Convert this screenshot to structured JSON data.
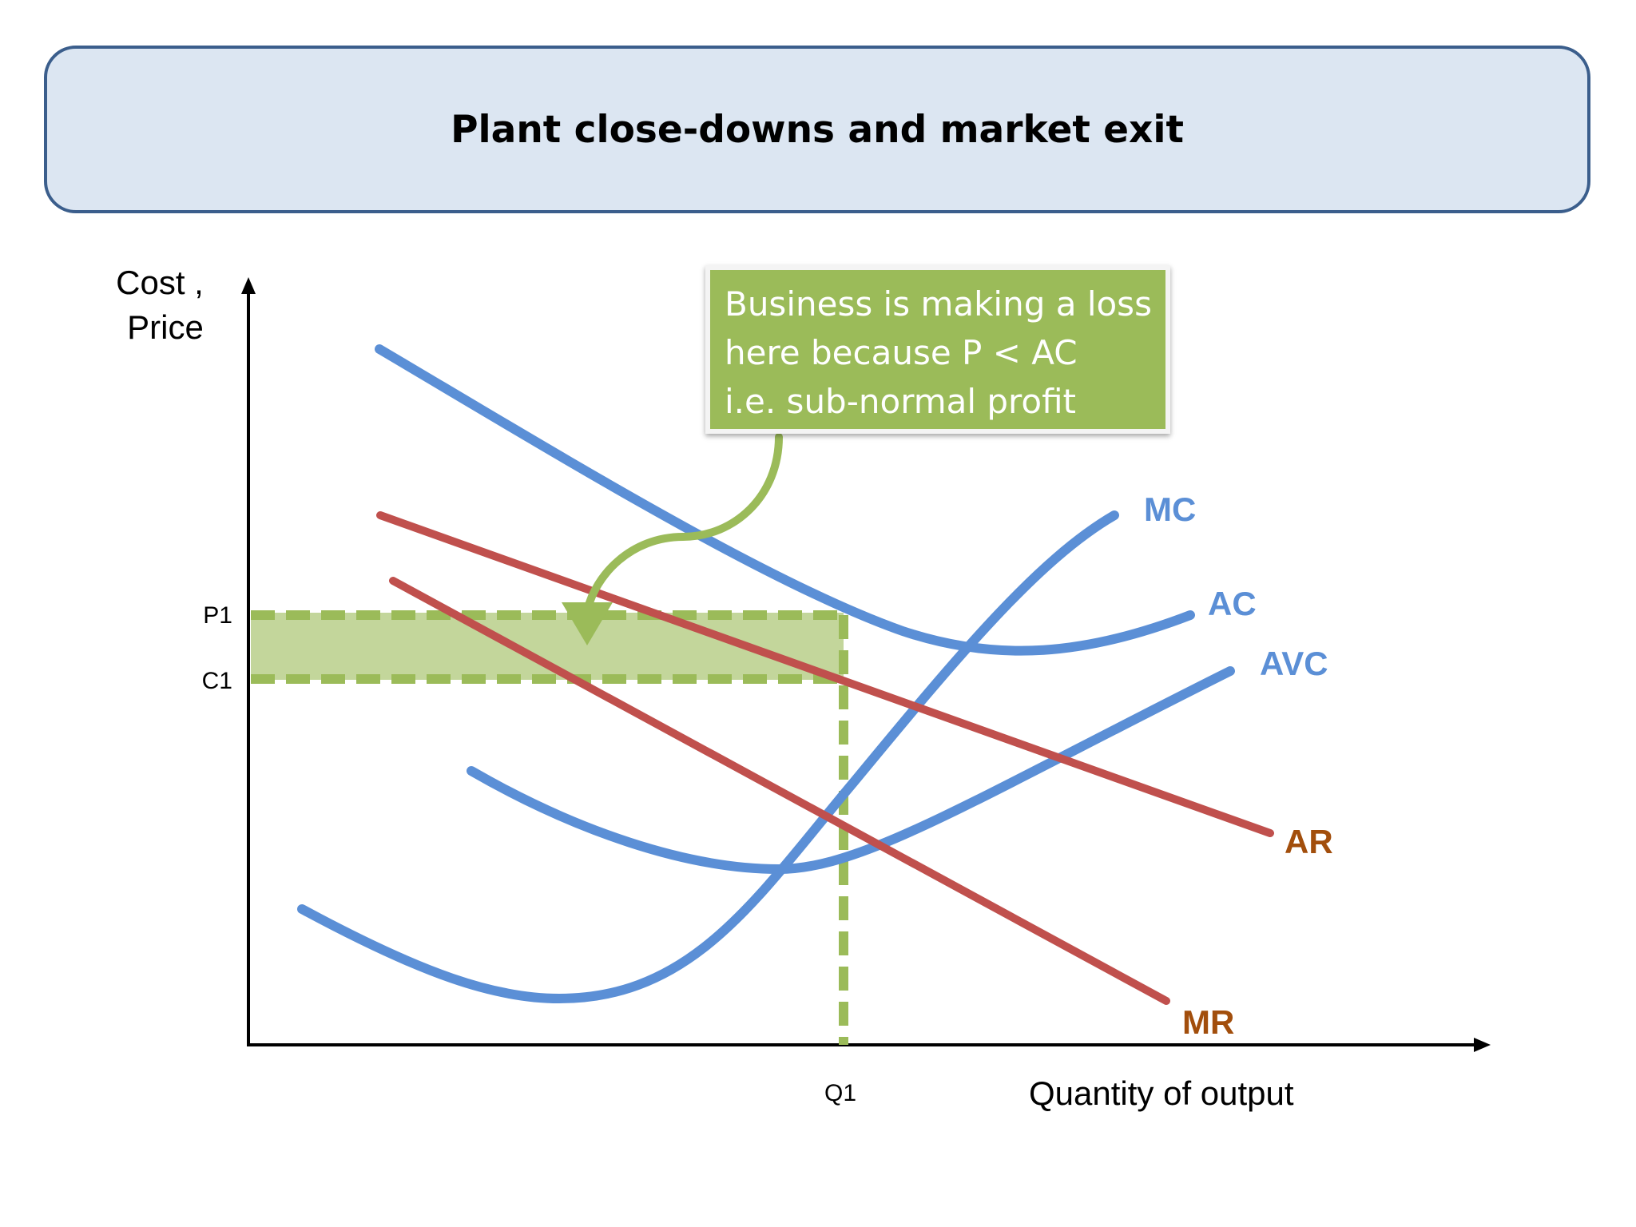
{
  "slide": {
    "title": "Plant close-downs and market exit"
  },
  "axes": {
    "y_label_line1": "Cost ,",
    "y_label_line2": "Price",
    "x_label": "Quantity of output",
    "ticks": {
      "p1": "P1",
      "c1": "C1",
      "q1": "Q1"
    }
  },
  "curves": {
    "mc": {
      "label": "MC",
      "color": "#5b8fd6"
    },
    "ac": {
      "label": "AC",
      "color": "#5b8fd6"
    },
    "avc": {
      "label": "AVC",
      "color": "#5b8fd6"
    },
    "ar": {
      "label": "AR",
      "color": "#c0504d",
      "label_color": "#a24e0c"
    },
    "mr": {
      "label": "MR",
      "color": "#c0504d",
      "label_color": "#a24e0c"
    }
  },
  "loss_area": {
    "color": "#9bbb59"
  },
  "callout": {
    "line1": "Business is making a loss",
    "line2": "here because P < AC",
    "line3": "i.e. sub-normal profit"
  }
}
